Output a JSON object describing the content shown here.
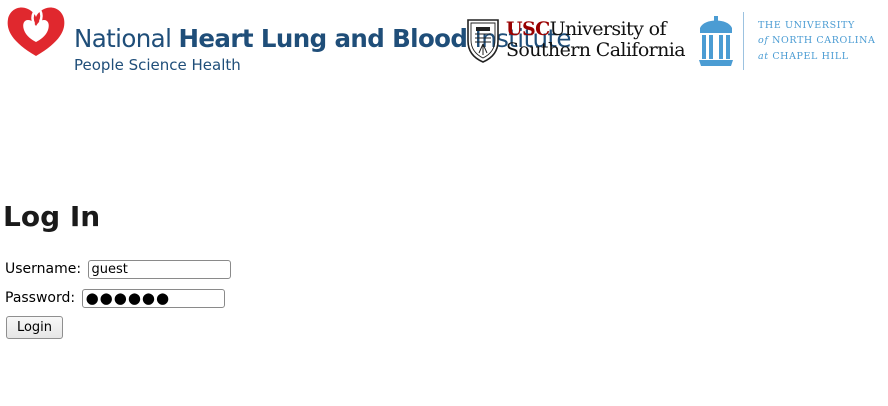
{
  "header": {
    "nhlbi": {
      "line1_prefix": "National",
      "line1_bold": "Heart Lung and Blood",
      "line1_suffix": "Institute",
      "line2": "People Science Health",
      "brand_color": "#1f4e79",
      "heart_color": "#e0282e"
    },
    "usc": {
      "abbr": "USC",
      "line1_rest": "University of",
      "line2": "Southern California",
      "brand_color": "#990000"
    },
    "unc": {
      "line1": "THE UNIVERSITY",
      "line2_prefix": "of",
      "line2_rest": "NORTH CAROLINA",
      "line3_prefix": "at",
      "line3_rest": "CHAPEL HILL",
      "brand_color": "#4b9cd3"
    }
  },
  "login": {
    "title": "Log In",
    "username_label": "Username:",
    "username_value": "guest",
    "password_label": "Password:",
    "password_value": "●●●●●●",
    "submit_label": "Login"
  }
}
